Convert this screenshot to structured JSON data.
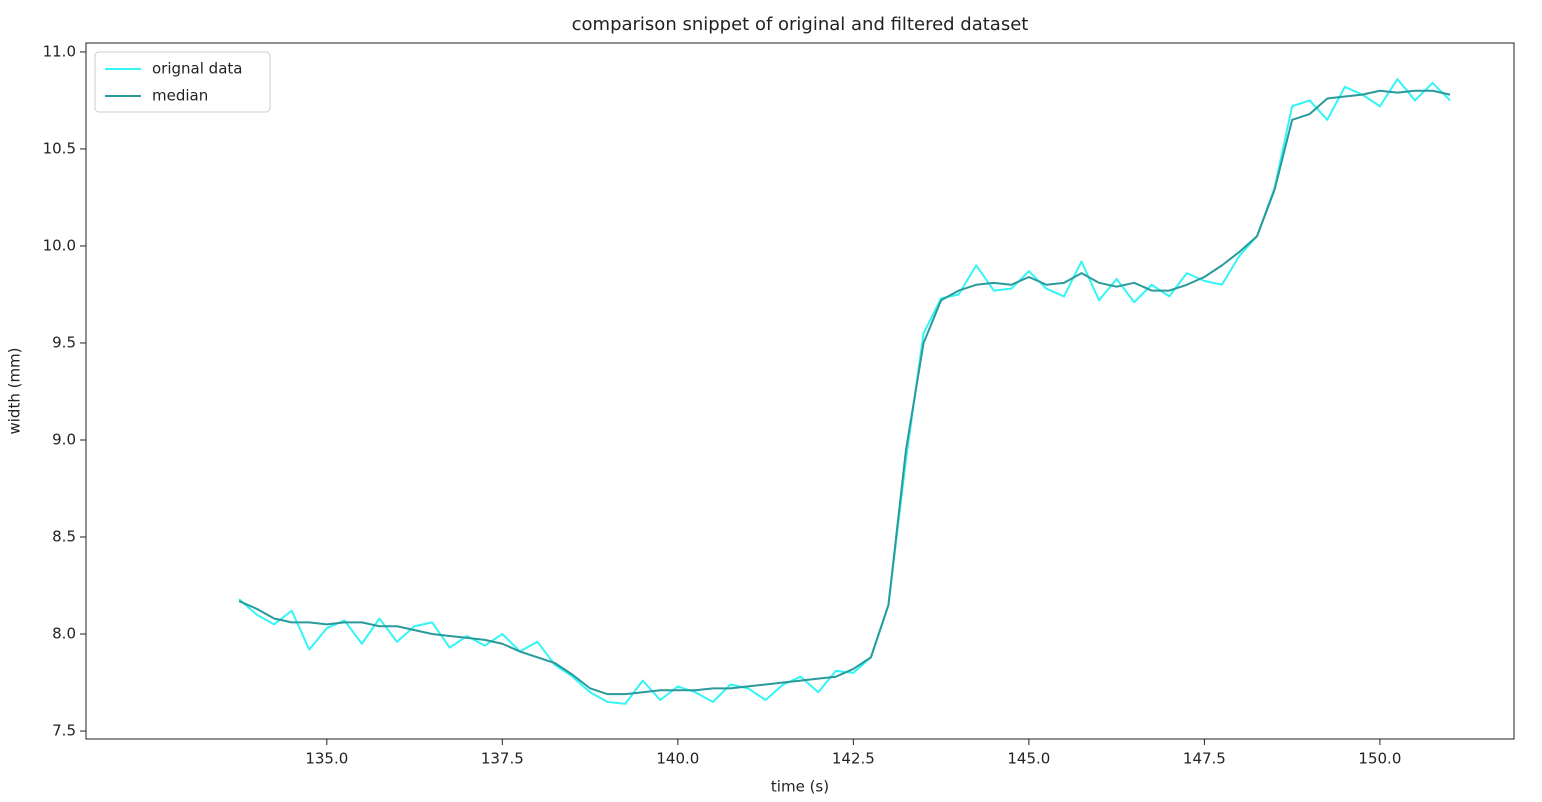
{
  "chart_data": {
    "type": "line",
    "title": "comparison snippet of original and filtered dataset",
    "x_label": "time (s)",
    "y_label": "width (mm)",
    "x": [
      133.75,
      134.0,
      134.25,
      134.5,
      134.75,
      135.0,
      135.25,
      135.5,
      135.75,
      136.0,
      136.25,
      136.5,
      136.75,
      137.0,
      137.25,
      137.5,
      137.75,
      138.0,
      138.25,
      138.5,
      138.75,
      139.0,
      139.25,
      139.5,
      139.75,
      140.0,
      140.25,
      140.5,
      140.75,
      141.0,
      141.25,
      141.5,
      141.75,
      142.0,
      142.25,
      142.5,
      142.75,
      143.0,
      143.25,
      143.5,
      143.75,
      144.0,
      144.25,
      144.5,
      144.75,
      145.0,
      145.25,
      145.5,
      145.75,
      146.0,
      146.25,
      146.5,
      146.75,
      147.0,
      147.25,
      147.5,
      147.75,
      148.0,
      148.25,
      148.5,
      148.75,
      149.0,
      149.25,
      149.5,
      149.75,
      150.0,
      150.25,
      150.5,
      150.75,
      151.0
    ],
    "series": [
      {
        "name": "orignal data",
        "color": "#33f5f5",
        "values": [
          8.18,
          8.1,
          8.05,
          8.12,
          7.92,
          8.03,
          8.07,
          7.95,
          8.08,
          7.96,
          8.04,
          8.06,
          7.93,
          7.99,
          7.94,
          8.0,
          7.91,
          7.96,
          7.84,
          7.78,
          7.7,
          7.65,
          7.64,
          7.76,
          7.66,
          7.73,
          7.7,
          7.65,
          7.74,
          7.72,
          7.66,
          7.74,
          7.78,
          7.7,
          7.81,
          7.8,
          7.88,
          8.15,
          8.9,
          9.55,
          9.73,
          9.75,
          9.9,
          9.77,
          9.78,
          9.87,
          9.78,
          9.74,
          9.92,
          9.72,
          9.83,
          9.71,
          9.8,
          9.74,
          9.86,
          9.82,
          9.8,
          9.95,
          10.05,
          10.3,
          10.72,
          10.75,
          10.65,
          10.82,
          10.78,
          10.72,
          10.86,
          10.75,
          10.84,
          10.75
        ]
      },
      {
        "name": "median",
        "color": "#2a9a9a",
        "values": [
          8.17,
          8.13,
          8.08,
          8.06,
          8.06,
          8.05,
          8.06,
          8.06,
          8.04,
          8.04,
          8.02,
          8.0,
          7.99,
          7.98,
          7.97,
          7.95,
          7.91,
          7.88,
          7.85,
          7.79,
          7.72,
          7.69,
          7.69,
          7.7,
          7.71,
          7.71,
          7.71,
          7.72,
          7.72,
          7.73,
          7.74,
          7.75,
          7.76,
          7.77,
          7.78,
          7.82,
          7.88,
          8.15,
          8.95,
          9.5,
          9.72,
          9.77,
          9.8,
          9.81,
          9.8,
          9.84,
          9.8,
          9.81,
          9.86,
          9.81,
          9.79,
          9.81,
          9.77,
          9.77,
          9.8,
          9.84,
          9.9,
          9.97,
          10.05,
          10.29,
          10.65,
          10.68,
          10.76,
          10.77,
          10.78,
          10.8,
          10.79,
          10.8,
          10.8,
          10.78
        ]
      }
    ],
    "xlim": [
      131.57,
      151.91
    ],
    "ylim": [
      7.459,
      11.046
    ],
    "xticks": [
      {
        "value": 135,
        "label": "135.0"
      },
      {
        "value": 137.5,
        "label": "137.5"
      },
      {
        "value": 140,
        "label": "140.0"
      },
      {
        "value": 142.5,
        "label": "142.5"
      },
      {
        "value": 145,
        "label": "145.0"
      },
      {
        "value": 147.5,
        "label": "147.5"
      },
      {
        "value": 150,
        "label": "150.0"
      }
    ],
    "yticks": [
      7.5,
      {
        "value": 8,
        "label": "8.0"
      },
      8.5,
      {
        "value": 9,
        "label": "9.0"
      },
      9.5,
      {
        "value": 10,
        "label": "10.0"
      },
      10.5,
      {
        "value": 11,
        "label": "11.0"
      }
    ],
    "grid": false,
    "legend": "upper-left"
  }
}
